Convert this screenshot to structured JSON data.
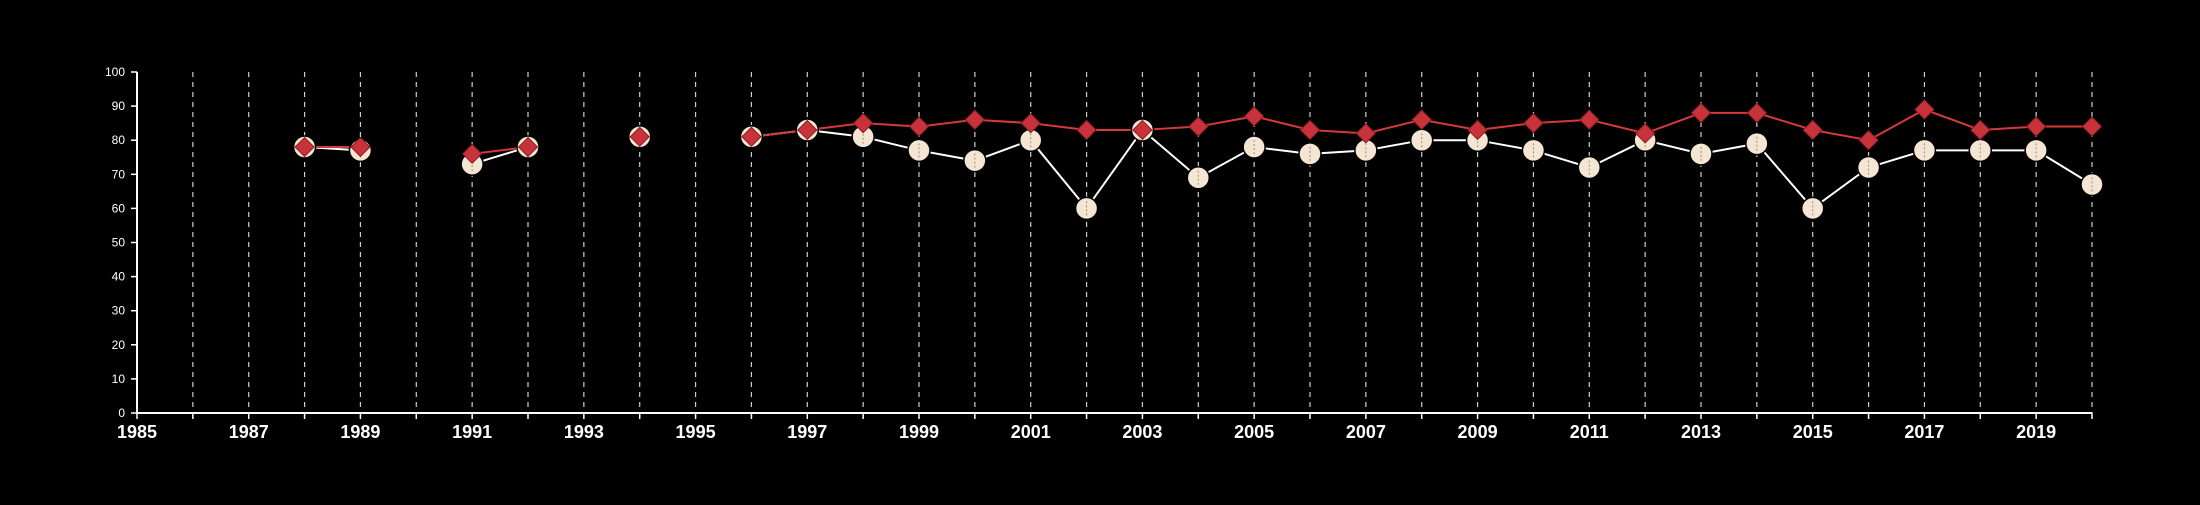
{
  "chart_data": {
    "type": "line",
    "title": "",
    "xlabel": "",
    "ylabel": "",
    "xlim": [
      1985,
      2020
    ],
    "ylim": [
      0,
      100
    ],
    "x_ticks": [
      1985,
      1987,
      1989,
      1991,
      1993,
      1995,
      1997,
      1999,
      2001,
      2003,
      2005,
      2007,
      2009,
      2011,
      2013,
      2015,
      2017,
      2019
    ],
    "y_ticks": [
      0,
      10,
      20,
      30,
      40,
      50,
      60,
      70,
      80,
      90,
      100
    ],
    "vertical_grid_years": [
      1986,
      1987,
      1988,
      1989,
      1990,
      1991,
      1992,
      1993,
      1994,
      1995,
      1996,
      1997,
      1998,
      1999,
      2000,
      2001,
      2002,
      2003,
      2004,
      2005,
      2006,
      2007,
      2008,
      2009,
      2010,
      2011,
      2012,
      2013,
      2014,
      2015,
      2016,
      2017,
      2018,
      2019,
      2020
    ],
    "grid": "vertical dashed",
    "background": "#000000",
    "series": [
      {
        "marker": "circle",
        "color": "#ffffff",
        "fill": "#f5e6d3",
        "points": [
          [
            1988,
            78
          ],
          [
            1989,
            77
          ],
          null,
          [
            1991,
            73
          ],
          [
            1992,
            78
          ],
          null,
          [
            1994,
            81
          ],
          null,
          [
            1996,
            81
          ],
          [
            1997,
            83
          ],
          [
            1998,
            81
          ],
          [
            1999,
            77
          ],
          [
            2000,
            74
          ],
          [
            2001,
            80
          ],
          [
            2002,
            60
          ],
          [
            2003,
            83
          ],
          [
            2004,
            69
          ],
          [
            2005,
            78
          ],
          [
            2006,
            76
          ],
          [
            2007,
            77
          ],
          [
            2008,
            80
          ],
          [
            2009,
            80
          ],
          [
            2010,
            77
          ],
          [
            2011,
            72
          ],
          [
            2012,
            80
          ],
          [
            2013,
            76
          ],
          [
            2014,
            79
          ],
          [
            2015,
            60
          ],
          [
            2016,
            72
          ],
          [
            2017,
            77
          ],
          [
            2018,
            77
          ],
          [
            2019,
            77
          ],
          [
            2020,
            67
          ]
        ]
      },
      {
        "marker": "diamond",
        "color": "#d43a3a",
        "fill": "#c8323a",
        "points": [
          [
            1988,
            78
          ],
          [
            1989,
            78
          ],
          null,
          [
            1991,
            76
          ],
          [
            1992,
            78
          ],
          null,
          [
            1994,
            81
          ],
          null,
          [
            1996,
            81
          ],
          [
            1997,
            83
          ],
          [
            1998,
            85
          ],
          [
            1999,
            84
          ],
          [
            2000,
            86
          ],
          [
            2001,
            85
          ],
          [
            2002,
            83
          ],
          [
            2003,
            83
          ],
          [
            2004,
            84
          ],
          [
            2005,
            87
          ],
          [
            2006,
            83
          ],
          [
            2007,
            82
          ],
          [
            2008,
            86
          ],
          [
            2009,
            83
          ],
          [
            2010,
            85
          ],
          [
            2011,
            86
          ],
          [
            2012,
            82
          ],
          [
            2013,
            88
          ],
          [
            2014,
            88
          ],
          [
            2015,
            83
          ],
          [
            2016,
            80
          ],
          [
            2017,
            89
          ],
          [
            2018,
            83
          ],
          [
            2019,
            84
          ],
          [
            2020,
            84
          ]
        ]
      }
    ]
  }
}
